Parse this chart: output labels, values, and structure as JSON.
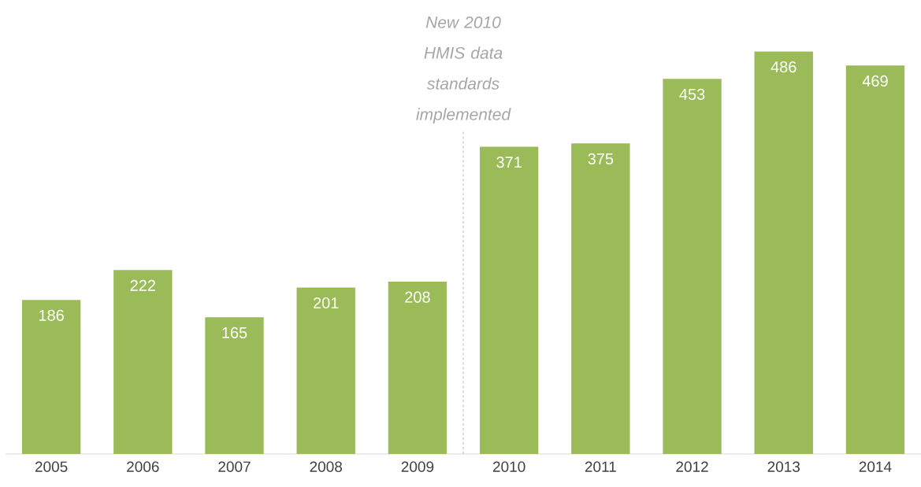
{
  "chart_data": {
    "type": "bar",
    "categories": [
      "2005",
      "2006",
      "2007",
      "2008",
      "2009",
      "2010",
      "2011",
      "2012",
      "2013",
      "2014"
    ],
    "values": [
      186,
      222,
      165,
      201,
      208,
      371,
      375,
      453,
      486,
      469
    ],
    "color": "#9bbb59",
    "data_labels": true,
    "tick_labels": "x",
    "annotations": [
      "New 2010 HMIS data standards implemented"
    ]
  }
}
